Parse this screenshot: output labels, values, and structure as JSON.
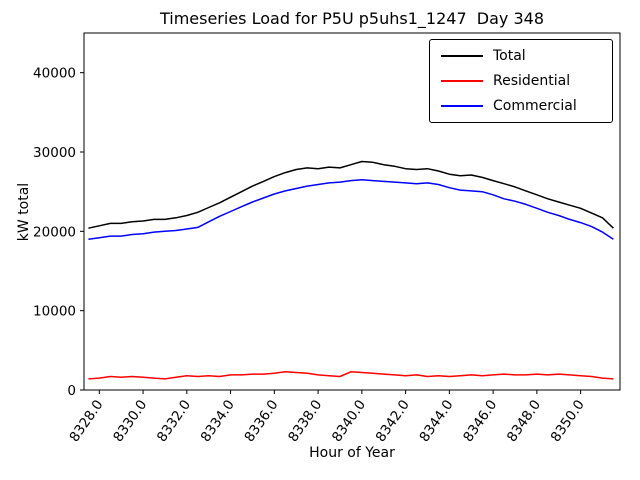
{
  "chart_data": {
    "type": "line",
    "title": "Timeseries Load for P5U p5uhs1_1247  Day 348",
    "xlabel": "Hour of Year",
    "ylabel": "kW total",
    "xlim": [
      8327.3,
      8351.8
    ],
    "ylim": [
      0,
      45000
    ],
    "grid": false,
    "legend_position": "upper right",
    "xticks": [
      8328,
      8330,
      8332,
      8334,
      8336,
      8338,
      8340,
      8342,
      8344,
      8346,
      8348,
      8350
    ],
    "xtick_labels": [
      "8328.0",
      "8330.0",
      "8332.0",
      "8334.0",
      "8336.0",
      "8338.0",
      "8340.0",
      "8342.0",
      "8344.0",
      "8346.0",
      "8348.0",
      "8350.0"
    ],
    "yticks": [
      0,
      10000,
      20000,
      30000,
      40000
    ],
    "ytick_labels": [
      "0",
      "10000",
      "20000",
      "30000",
      "40000"
    ],
    "x": [
      8327.5,
      8328,
      8328.5,
      8329,
      8329.5,
      8330,
      8330.5,
      8331,
      8331.5,
      8332,
      8332.5,
      8333,
      8333.5,
      8334,
      8334.5,
      8335,
      8335.5,
      8336,
      8336.5,
      8337,
      8337.5,
      8338,
      8338.5,
      8339,
      8339.5,
      8340,
      8340.5,
      8341,
      8341.5,
      8342,
      8342.5,
      8343,
      8343.5,
      8344,
      8344.5,
      8345,
      8345.5,
      8346,
      8346.5,
      8347,
      8347.5,
      8348,
      8348.5,
      8349,
      8349.5,
      8350,
      8350.5,
      8351,
      8351.5
    ],
    "series": [
      {
        "name": "Total",
        "color": "#000000",
        "values": [
          20400,
          20700,
          21000,
          21000,
          21200,
          21300,
          21500,
          21500,
          21700,
          22000,
          22400,
          23000,
          23600,
          24300,
          25000,
          25700,
          26300,
          26900,
          27400,
          27800,
          28000,
          27900,
          28100,
          28000,
          28400,
          28800,
          28700,
          28400,
          28200,
          27900,
          27800,
          27900,
          27600,
          27200,
          27000,
          27100,
          26800,
          26400,
          26000,
          25600,
          25100,
          24600,
          24100,
          23700,
          23300,
          22900,
          22300,
          21700,
          20400
        ]
      },
      {
        "name": "Residential",
        "color": "#ff0000",
        "values": [
          1400,
          1500,
          1700,
          1600,
          1700,
          1600,
          1500,
          1400,
          1600,
          1800,
          1700,
          1800,
          1700,
          1900,
          1900,
          2000,
          2000,
          2100,
          2300,
          2200,
          2100,
          1900,
          1800,
          1700,
          2300,
          2200,
          2100,
          2000,
          1900,
          1800,
          1900,
          1700,
          1800,
          1700,
          1800,
          1900,
          1800,
          1900,
          2000,
          1900,
          1900,
          2000,
          1900,
          2000,
          1900,
          1800,
          1700,
          1500,
          1400
        ]
      },
      {
        "name": "Commercial",
        "color": "#0000ff",
        "values": [
          19000,
          19200,
          19400,
          19400,
          19600,
          19700,
          19900,
          20000,
          20100,
          20300,
          20500,
          21200,
          21900,
          22500,
          23100,
          23700,
          24200,
          24700,
          25100,
          25400,
          25700,
          25900,
          26100,
          26200,
          26400,
          26500,
          26400,
          26300,
          26200,
          26100,
          26000,
          26100,
          25900,
          25500,
          25200,
          25100,
          25000,
          24600,
          24100,
          23800,
          23400,
          22900,
          22400,
          22000,
          21500,
          21100,
          20600,
          19900,
          19000
        ]
      }
    ]
  }
}
